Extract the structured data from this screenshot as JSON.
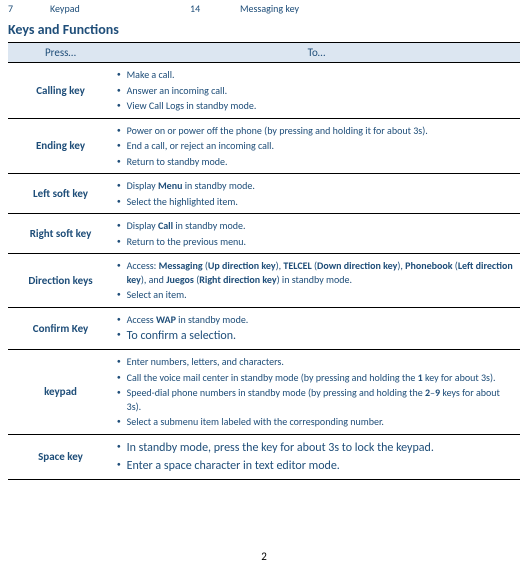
{
  "top": {
    "n1": "7",
    "t1": "Keypad",
    "n2": "14",
    "t2": "Messaging key"
  },
  "heading": "Keys and Functions",
  "headers": {
    "c1": "Press…",
    "c2": "To…"
  },
  "rows": [
    {
      "key": "Calling key",
      "items": [
        [
          {
            "t": "Make a call."
          }
        ],
        [
          {
            "t": "Answer an incoming call."
          }
        ],
        [
          {
            "t": "View Call Logs in standby mode."
          }
        ]
      ]
    },
    {
      "key": "Ending key",
      "items": [
        [
          {
            "t": "Power on or power off the phone (by pressing and holding it for about 3s)."
          }
        ],
        [
          {
            "t": "End a call, or reject an incoming call."
          }
        ],
        [
          {
            "t": "Return to standby mode."
          }
        ]
      ]
    },
    {
      "key": "Left soft key",
      "items": [
        [
          {
            "t": "Display "
          },
          {
            "t": "Menu",
            "b": 1
          },
          {
            "t": " in standby mode."
          }
        ],
        [
          {
            "t": "Select the highlighted item."
          }
        ]
      ]
    },
    {
      "key": "Right soft key",
      "items": [
        [
          {
            "t": "Display "
          },
          {
            "t": "Call",
            "b": 1
          },
          {
            "t": " in standby mode."
          }
        ],
        [
          {
            "t": "Return to the previous menu."
          }
        ]
      ]
    },
    {
      "key": "Direction keys",
      "items": [
        [
          {
            "t": "Access: "
          },
          {
            "t": "Messaging",
            "b": 1
          },
          {
            "t": " ("
          },
          {
            "t": "Up direction key",
            "b": 1
          },
          {
            "t": "), "
          },
          {
            "t": "TELCEL",
            "b": 1
          },
          {
            "t": " ("
          },
          {
            "t": "Down direction key",
            "b": 1
          },
          {
            "t": "), "
          },
          {
            "t": "Phonebook",
            "b": 1
          },
          {
            "t": " ("
          },
          {
            "t": "Left direction key",
            "b": 1
          },
          {
            "t": "), and "
          },
          {
            "t": "Juegos",
            "b": 1
          },
          {
            "t": " ("
          },
          {
            "t": "Right direction key",
            "b": 1
          },
          {
            "t": ") in standby mode."
          }
        ],
        [
          {
            "t": "Select an item."
          }
        ]
      ]
    },
    {
      "key": "Confirm Key",
      "items": [
        [
          {
            "t": "Access "
          },
          {
            "t": "WAP",
            "b": 1
          },
          {
            "t": " in standby mode."
          }
        ],
        [
          {
            "t": "To confirm a selection.",
            "lg": 1
          }
        ]
      ]
    },
    {
      "key": "keypad",
      "items": [
        [
          {
            "t": "Enter numbers, letters, and characters."
          }
        ],
        [
          {
            "t": "Call the voice mail center in standby mode (by pressing and holding the "
          },
          {
            "t": "1",
            "b": 1
          },
          {
            "t": " key for about 3s)."
          }
        ],
        [
          {
            "t": "Speed-dial phone numbers in standby mode (by pressing and holding the "
          },
          {
            "t": "2",
            "b": 1
          },
          {
            "t": "–"
          },
          {
            "t": "9",
            "b": 1
          },
          {
            "t": " keys for about 3s)."
          }
        ],
        [
          {
            "t": "Select a submenu item labeled with the corresponding number."
          }
        ]
      ]
    },
    {
      "key": "Space key",
      "items": [
        [
          {
            "t": "In standby mode, press the key for about 3s to lock the keypad.",
            "lg": 1
          }
        ],
        [
          {
            "t": "Enter a space character in text editor mode.",
            "lg": 1
          }
        ]
      ]
    }
  ],
  "page": "2"
}
